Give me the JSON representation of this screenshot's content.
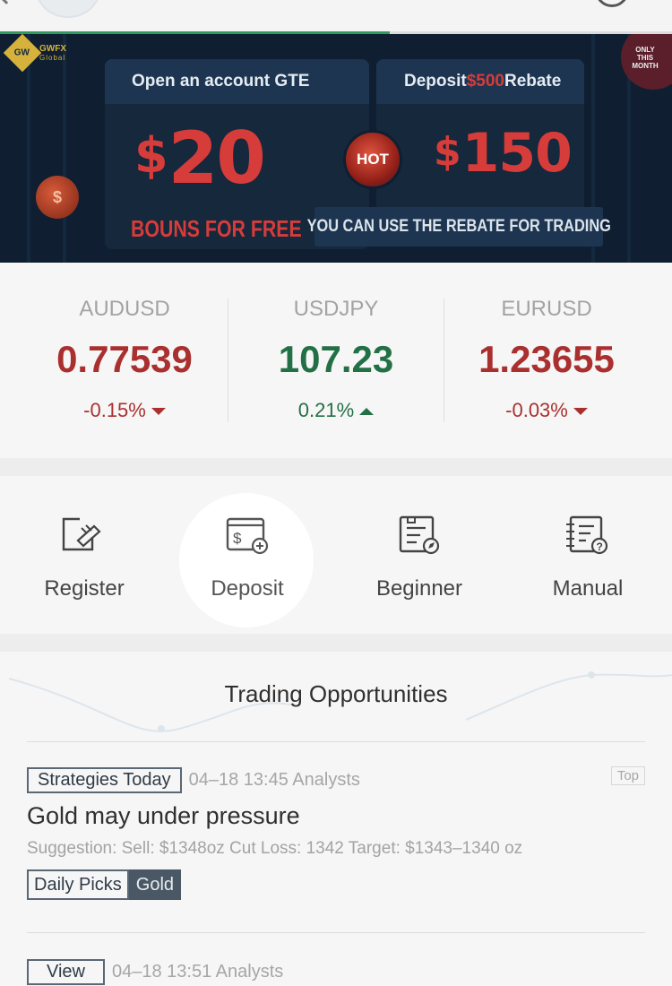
{
  "header": {
    "progress_percent": 58
  },
  "banner": {
    "brand_name": "GWFX",
    "brand_sub": "Global",
    "brand_mark": "GW",
    "left_panel_title": "Open an account GTE",
    "left_amount": "20",
    "left_currency": "$",
    "left_caption": "BOUNS FOR FREE",
    "right_panel_prefix": "Deposit ",
    "right_panel_accent": "$500",
    "right_panel_suffix": " Rebate",
    "right_amount": "150",
    "right_currency": "$",
    "right_caption": "YOU CAN USE THE REBATE FOR TRADING",
    "hot_label": "HOT",
    "coin_symbol": "$",
    "month_badge": "ONLY THIS MONTH"
  },
  "ticker": [
    {
      "symbol": "AUDUSD",
      "price": "0.77539",
      "change": "-0.15%",
      "direction": "down"
    },
    {
      "symbol": "USDJPY",
      "price": "107.23",
      "change": "0.21%",
      "direction": "up"
    },
    {
      "symbol": "EURUSD",
      "price": "1.23655",
      "change": "-0.03%",
      "direction": "down"
    }
  ],
  "shortcuts": [
    {
      "label": "Register",
      "icon": "register-icon"
    },
    {
      "label": "Deposit",
      "icon": "deposit-icon"
    },
    {
      "label": "Beginner",
      "icon": "beginner-icon"
    },
    {
      "label": "Manual",
      "icon": "manual-icon"
    }
  ],
  "opportunities": {
    "title": "Trading Opportunities",
    "articles": [
      {
        "tag": "Strategies Today",
        "meta": "04–18 13:45 Analysts",
        "badge": "Top",
        "headline": "Gold may under pressure",
        "suggestion": "Suggestion: Sell: $1348oz Cut Loss: 1342 Target: $1343–1340 oz",
        "pills": [
          "Daily Picks",
          "Gold"
        ]
      },
      {
        "tag": "View",
        "meta": "04–18 13:51 Analysts"
      }
    ]
  },
  "colors": {
    "banner_bg": "#0f1f31",
    "accent_red": "#d63c3a",
    "price_down": "#a9302f",
    "price_up": "#237046",
    "progress": "#2e9a5e"
  }
}
